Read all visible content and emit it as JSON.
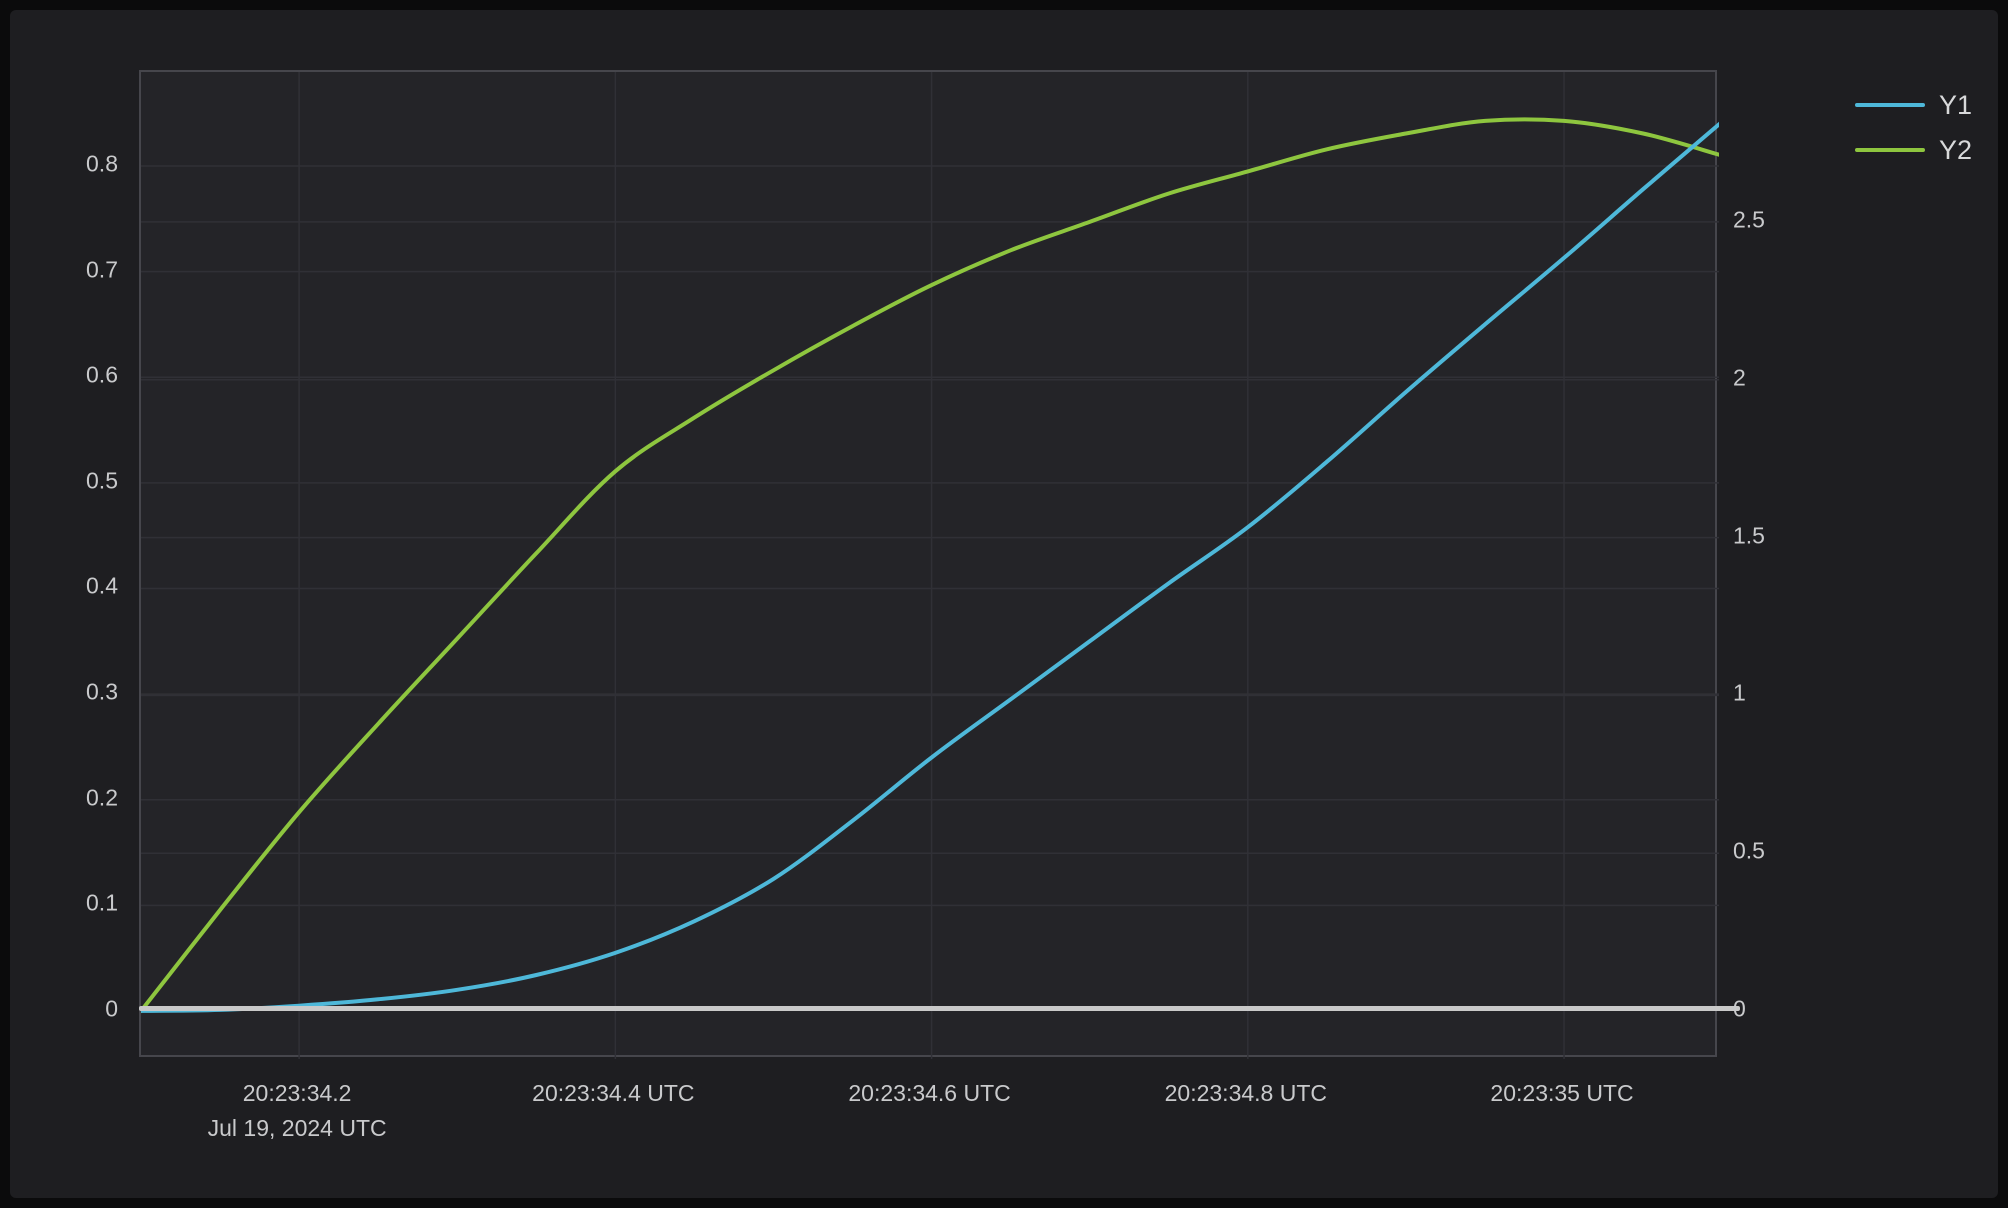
{
  "legend": {
    "items": [
      {
        "label": "Y1",
        "color": "#4eb8d9"
      },
      {
        "label": "Y2",
        "color": "#8ec63f"
      }
    ]
  },
  "colors": {
    "page_background": "#0b0b0c",
    "panel_background": "#1e1e21",
    "plot_background": "#242428",
    "grid": "#303036",
    "plot_border": "#46464c",
    "zero_line": "#c9c9c9",
    "axis_text": "#c9cacc",
    "series_y1": "#4eb8d9",
    "series_y2": "#8ec63f"
  },
  "chart_data": {
    "type": "line",
    "title": "",
    "xlabel": "",
    "ylabel_left": "",
    "ylabel_right": "",
    "grid": true,
    "legend_position": "top-right",
    "x_axis": {
      "unit": "time (UTC)",
      "min": 34.1,
      "max": 35.098,
      "ticks": [
        {
          "value": 34.2,
          "label": "20:23:34.2",
          "sublabel": "Jul 19, 2024 UTC"
        },
        {
          "value": 34.4,
          "label": "20:23:34.4 UTC",
          "sublabel": ""
        },
        {
          "value": 34.6,
          "label": "20:23:34.6 UTC",
          "sublabel": ""
        },
        {
          "value": 34.8,
          "label": "20:23:34.8 UTC",
          "sublabel": ""
        },
        {
          "value": 35.0,
          "label": "20:23:35 UTC",
          "sublabel": ""
        }
      ]
    },
    "y_axis_left": {
      "min": -0.0455,
      "max": 0.889,
      "ticks": [
        {
          "value": 0,
          "label": "0"
        },
        {
          "value": 0.1,
          "label": "0.1"
        },
        {
          "value": 0.2,
          "label": "0.2"
        },
        {
          "value": 0.3,
          "label": "0.3"
        },
        {
          "value": 0.4,
          "label": "0.4"
        },
        {
          "value": 0.5,
          "label": "0.5"
        },
        {
          "value": 0.6,
          "label": "0.6"
        },
        {
          "value": 0.7,
          "label": "0.7"
        },
        {
          "value": 0.8,
          "label": "0.8"
        }
      ]
    },
    "y_axis_right": {
      "min": -0.152,
      "max": 2.975,
      "ticks": [
        {
          "value": 0,
          "label": "0"
        },
        {
          "value": 0.5,
          "label": "0.5"
        },
        {
          "value": 1,
          "label": "1"
        },
        {
          "value": 1.5,
          "label": "1.5"
        },
        {
          "value": 2,
          "label": "2"
        },
        {
          "value": 2.5,
          "label": "2.5"
        }
      ]
    },
    "x": [
      34.1,
      34.15,
      34.2,
      34.25,
      34.3,
      34.35,
      34.4,
      34.45,
      34.5,
      34.55,
      34.6,
      34.65,
      34.7,
      34.75,
      34.8,
      34.85,
      34.9,
      34.95,
      35.0,
      35.05,
      35.1
    ],
    "series": [
      {
        "name": "Y1",
        "axis": "left",
        "color": "#4eb8d9",
        "values": [
          0,
          0.001,
          0.005,
          0.011,
          0.02,
          0.034,
          0.055,
          0.085,
          0.125,
          0.18,
          0.24,
          0.295,
          0.35,
          0.405,
          0.458,
          0.52,
          0.586,
          0.65,
          0.713,
          0.778,
          0.842
        ]
      },
      {
        "name": "Y2",
        "axis": "right",
        "color": "#8ec63f",
        "values": [
          0,
          0.32,
          0.63,
          0.91,
          1.18,
          1.45,
          1.71,
          1.88,
          2.03,
          2.17,
          2.3,
          2.41,
          2.5,
          2.59,
          2.66,
          2.73,
          2.78,
          2.82,
          2.82,
          2.78,
          2.71
        ]
      }
    ],
    "zero_baseline": true
  }
}
